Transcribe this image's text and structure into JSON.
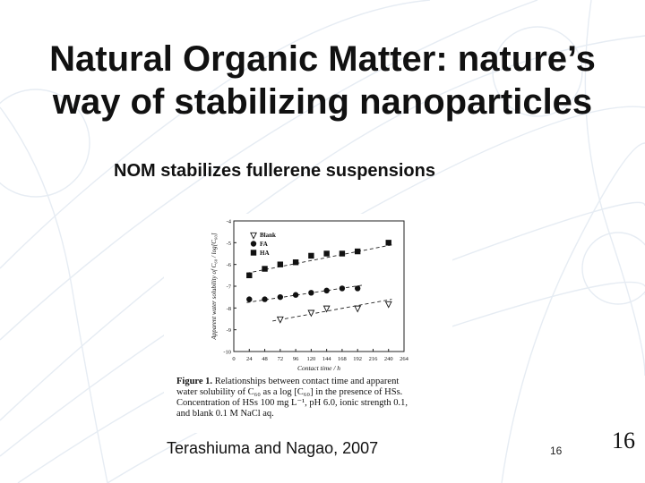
{
  "slide": {
    "title_line1": "Natural Organic Matter: nature’s",
    "title_line2": "way of stabilizing nanoparticles",
    "subtitle": "NOM stabilizes fullerene suspensions",
    "citation": "Terashiuma and Nagao, 2007",
    "page_number_small": "16",
    "page_number_large": "16"
  },
  "figure": {
    "caption_lead": "Figure 1.",
    "caption_line1": "Relationships between contact time and apparent",
    "caption_line2": "water solubility of C₆₀ as a log [C₆₀] in the presence of HSs.",
    "caption_line3": "Concentration of HSs 100 mg L⁻¹, pH 6.0, ionic strength 0.1,",
    "caption_line4": "and blank 0.1 M NaCl aq."
  },
  "chart_data": {
    "type": "scatter",
    "xlabel": "Contact time / h",
    "ylabel": "Apparent water solubility of C₆₀ / log[C₆₀]",
    "xlim": [
      0,
      264
    ],
    "ylim": [
      -10,
      -4
    ],
    "x_ticks": [
      "0",
      "24",
      "48",
      "72",
      "96",
      "120",
      "144",
      "168",
      "192",
      "216",
      "240",
      "264"
    ],
    "y_ticks": [
      "-4",
      "-5",
      "-6",
      "-7",
      "-8",
      "-9",
      "-10"
    ],
    "legend_position": "top-left",
    "series": [
      {
        "name": "Blank",
        "marker": "triangle-open",
        "x": [
          72,
          120,
          144,
          192,
          240
        ],
        "y": [
          -8.5,
          -8.2,
          -8.0,
          -8.0,
          -7.8
        ],
        "trend": [
          [
            60,
            -8.6
          ],
          [
            245,
            -7.6
          ]
        ]
      },
      {
        "name": "FA",
        "marker": "circle",
        "x": [
          24,
          48,
          72,
          96,
          120,
          144,
          168,
          192
        ],
        "y": [
          -7.6,
          -7.6,
          -7.5,
          -7.4,
          -7.3,
          -7.2,
          -7.1,
          -7.1
        ],
        "trend": [
          [
            20,
            -7.75
          ],
          [
            200,
            -6.95
          ]
        ]
      },
      {
        "name": "HA",
        "marker": "square",
        "x": [
          24,
          48,
          72,
          96,
          120,
          144,
          168,
          192,
          240
        ],
        "y": [
          -6.5,
          -6.2,
          -6.0,
          -5.9,
          -5.6,
          -5.5,
          -5.5,
          -5.4,
          -5.0
        ],
        "trend": [
          [
            20,
            -6.4
          ],
          [
            245,
            -5.1
          ]
        ]
      }
    ]
  }
}
